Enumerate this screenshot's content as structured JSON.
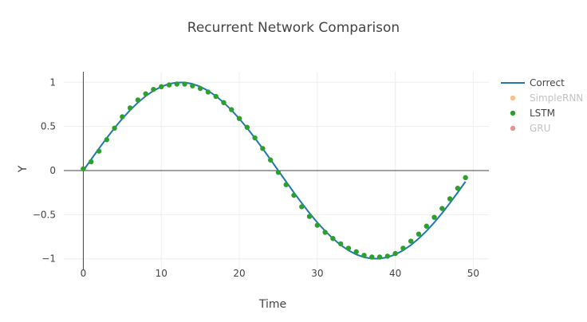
{
  "chart_data": {
    "type": "line",
    "title": "Recurrent Network Comparison",
    "xlabel": "Time",
    "ylabel": "Y",
    "xlim": [
      -2.5,
      52
    ],
    "ylim": [
      -1.12,
      1.12
    ],
    "x_ticks": [
      0,
      10,
      20,
      30,
      40,
      50
    ],
    "x_tick_labels": [
      "0",
      "10",
      "20",
      "30",
      "40",
      "50"
    ],
    "y_ticks": [
      -1,
      -0.5,
      0,
      0.5,
      1
    ],
    "y_tick_labels": [
      "−1",
      "−0.5",
      "0",
      "0.5",
      "1"
    ],
    "grid": true,
    "legend_position": "right",
    "series": [
      {
        "name": "Correct",
        "mode": "line",
        "color": "#1f77b4",
        "visible": true,
        "x": [
          0,
          1,
          2,
          3,
          4,
          5,
          6,
          7,
          8,
          9,
          10,
          11,
          12,
          13,
          14,
          15,
          16,
          17,
          18,
          19,
          20,
          21,
          22,
          23,
          24,
          25,
          26,
          27,
          28,
          29,
          30,
          31,
          32,
          33,
          34,
          35,
          36,
          37,
          38,
          39,
          40,
          41,
          42,
          43,
          44,
          45,
          46,
          47,
          48,
          49
        ],
        "y": [
          0.0,
          0.1253,
          0.2487,
          0.3681,
          0.4818,
          0.5878,
          0.6845,
          0.7705,
          0.8443,
          0.9048,
          0.9511,
          0.9823,
          0.998,
          0.998,
          0.9823,
          0.9511,
          0.9048,
          0.8443,
          0.7705,
          0.6845,
          0.5878,
          0.4818,
          0.3681,
          0.2487,
          0.1253,
          0.0,
          -0.1253,
          -0.2487,
          -0.3681,
          -0.4818,
          -0.5878,
          -0.6845,
          -0.7705,
          -0.8443,
          -0.9048,
          -0.9511,
          -0.9823,
          -0.998,
          -0.998,
          -0.9823,
          -0.9511,
          -0.9048,
          -0.8443,
          -0.7705,
          -0.6845,
          -0.5878,
          -0.4818,
          -0.3681,
          -0.2487,
          -0.1253
        ]
      },
      {
        "name": "SimpleRNN",
        "mode": "markers",
        "color": "#ff7f0e",
        "visible": false,
        "x": [],
        "y": []
      },
      {
        "name": "LSTM",
        "mode": "markers",
        "color": "#2ca02c",
        "visible": true,
        "x": [
          0,
          1,
          2,
          3,
          4,
          5,
          6,
          7,
          8,
          9,
          10,
          11,
          12,
          13,
          14,
          15,
          16,
          17,
          18,
          19,
          20,
          21,
          22,
          23,
          24,
          25,
          26,
          27,
          28,
          29,
          30,
          31,
          32,
          33,
          34,
          35,
          36,
          37,
          38,
          39,
          40,
          41,
          42,
          43,
          44,
          45,
          46,
          47,
          48,
          49
        ],
        "y": [
          0.02,
          0.1,
          0.22,
          0.35,
          0.48,
          0.61,
          0.71,
          0.8,
          0.87,
          0.92,
          0.95,
          0.97,
          0.98,
          0.98,
          0.96,
          0.93,
          0.89,
          0.84,
          0.77,
          0.69,
          0.59,
          0.49,
          0.37,
          0.25,
          0.12,
          -0.02,
          -0.16,
          -0.28,
          -0.41,
          -0.52,
          -0.62,
          -0.7,
          -0.77,
          -0.83,
          -0.88,
          -0.92,
          -0.96,
          -0.98,
          -0.98,
          -0.97,
          -0.94,
          -0.88,
          -0.8,
          -0.72,
          -0.63,
          -0.53,
          -0.43,
          -0.32,
          -0.2,
          -0.08
        ]
      },
      {
        "name": "GRU",
        "mode": "markers",
        "color": "#d62728",
        "visible": false,
        "x": [],
        "y": []
      }
    ]
  }
}
